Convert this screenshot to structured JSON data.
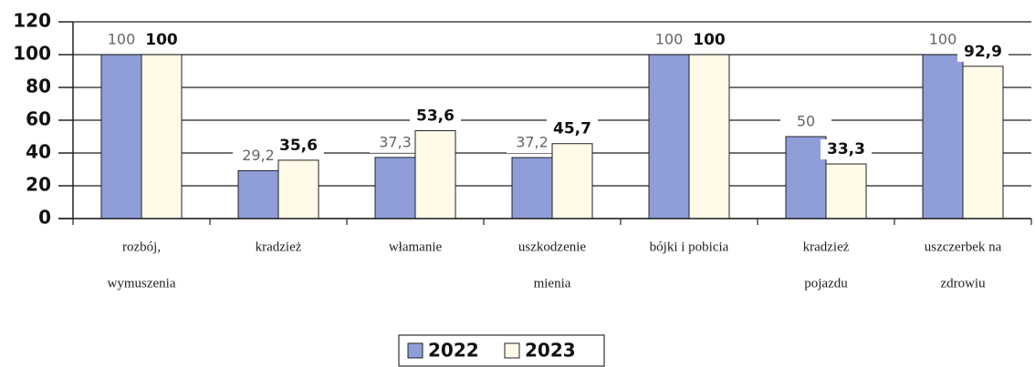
{
  "chart_data": {
    "type": "bar",
    "categories": [
      [
        "rozbój,",
        "wymuszenia"
      ],
      [
        "kradzież"
      ],
      [
        "włamanie"
      ],
      [
        "uszkodzenie",
        "mienia"
      ],
      [
        "bójki i pobicia"
      ],
      [
        "kradzież",
        "pojazdu"
      ],
      [
        "uszczerbek na",
        "zdrowiu"
      ]
    ],
    "series": [
      {
        "name": "2022",
        "color": "#8f9ed9",
        "values": [
          100,
          29.2,
          37.3,
          37.2,
          100,
          50,
          100
        ],
        "value_labels": [
          "100",
          "29,2",
          "37,3",
          "37,2",
          "100",
          "50",
          "100"
        ]
      },
      {
        "name": "2023",
        "color": "#fffbe8",
        "values": [
          100,
          35.6,
          53.6,
          45.7,
          100,
          33.3,
          92.9
        ],
        "value_labels": [
          "100",
          "35,6",
          "53,6",
          "45,7",
          "100",
          "33,3",
          "92,9"
        ]
      }
    ],
    "ylim": [
      0,
      120
    ],
    "yticks": [
      0,
      20,
      40,
      60,
      80,
      100,
      120
    ],
    "grid": true,
    "legend": "bottom"
  }
}
